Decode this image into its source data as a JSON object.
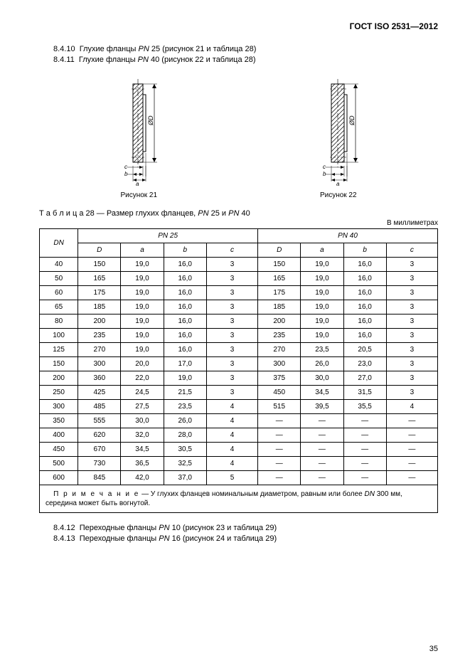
{
  "doc_id": "ГОСТ ISO 2531—2012",
  "sections_top": [
    {
      "num": "8.4.10",
      "text": "Глухие фланцы ",
      "italic": "PN",
      "rest": " 25 (рисунок 21 и таблица 28)"
    },
    {
      "num": "8.4.11",
      "text": "Глухие фланцы ",
      "italic": "PN",
      "rest": " 40 (рисунок 22 и таблица 28)"
    }
  ],
  "figure_captions": {
    "left": "Рисунок 21",
    "right": "Рисунок 22"
  },
  "table_title_prefix": "Т а б л и ц а  28",
  "table_title_rest": " — Размер глухих фланцев, ",
  "table_title_italic1": "PN",
  "table_title_mid": " 25 и ",
  "table_title_italic2": "PN",
  "table_title_end": " 40",
  "units_label": "В миллиметрах",
  "group_headers": {
    "pn25": "PN 25",
    "pn40": "PN 40"
  },
  "col_headers": {
    "dn": "DN",
    "D": "D",
    "a": "a",
    "b": "b",
    "c": "c"
  },
  "rows": [
    {
      "dn": "40",
      "pn25": {
        "D": "150",
        "a": "19,0",
        "b": "16,0",
        "c": "3"
      },
      "pn40": {
        "D": "150",
        "a": "19,0",
        "b": "16,0",
        "c": "3"
      }
    },
    {
      "dn": "50",
      "pn25": {
        "D": "165",
        "a": "19,0",
        "b": "16,0",
        "c": "3"
      },
      "pn40": {
        "D": "165",
        "a": "19,0",
        "b": "16,0",
        "c": "3"
      }
    },
    {
      "dn": "60",
      "pn25": {
        "D": "175",
        "a": "19,0",
        "b": "16,0",
        "c": "3"
      },
      "pn40": {
        "D": "175",
        "a": "19,0",
        "b": "16,0",
        "c": "3"
      }
    },
    {
      "dn": "65",
      "pn25": {
        "D": "185",
        "a": "19,0",
        "b": "16,0",
        "c": "3"
      },
      "pn40": {
        "D": "185",
        "a": "19,0",
        "b": "16,0",
        "c": "3"
      }
    },
    {
      "dn": "80",
      "pn25": {
        "D": "200",
        "a": "19,0",
        "b": "16,0",
        "c": "3"
      },
      "pn40": {
        "D": "200",
        "a": "19,0",
        "b": "16,0",
        "c": "3"
      }
    },
    {
      "dn": "100",
      "pn25": {
        "D": "235",
        "a": "19,0",
        "b": "16,0",
        "c": "3"
      },
      "pn40": {
        "D": "235",
        "a": "19,0",
        "b": "16,0",
        "c": "3"
      }
    },
    {
      "dn": "125",
      "pn25": {
        "D": "270",
        "a": "19,0",
        "b": "16,0",
        "c": "3"
      },
      "pn40": {
        "D": "270",
        "a": "23,5",
        "b": "20,5",
        "c": "3"
      }
    },
    {
      "dn": "150",
      "pn25": {
        "D": "300",
        "a": "20,0",
        "b": "17,0",
        "c": "3"
      },
      "pn40": {
        "D": "300",
        "a": "26,0",
        "b": "23,0",
        "c": "3"
      }
    },
    {
      "dn": "200",
      "pn25": {
        "D": "360",
        "a": "22,0",
        "b": "19,0",
        "c": "3"
      },
      "pn40": {
        "D": "375",
        "a": "30,0",
        "b": "27,0",
        "c": "3"
      }
    },
    {
      "dn": "250",
      "pn25": {
        "D": "425",
        "a": "24,5",
        "b": "21,5",
        "c": "3"
      },
      "pn40": {
        "D": "450",
        "a": "34,5",
        "b": "31,5",
        "c": "3"
      }
    },
    {
      "dn": "300",
      "pn25": {
        "D": "485",
        "a": "27,5",
        "b": "23,5",
        "c": "4"
      },
      "pn40": {
        "D": "515",
        "a": "39,5",
        "b": "35,5",
        "c": "4"
      }
    },
    {
      "dn": "350",
      "pn25": {
        "D": "555",
        "a": "30,0",
        "b": "26,0",
        "c": "4"
      },
      "pn40": {
        "D": "—",
        "a": "—",
        "b": "—",
        "c": "—"
      }
    },
    {
      "dn": "400",
      "pn25": {
        "D": "620",
        "a": "32,0",
        "b": "28,0",
        "c": "4"
      },
      "pn40": {
        "D": "—",
        "a": "—",
        "b": "—",
        "c": "—"
      }
    },
    {
      "dn": "450",
      "pn25": {
        "D": "670",
        "a": "34,5",
        "b": "30,5",
        "c": "4"
      },
      "pn40": {
        "D": "—",
        "a": "—",
        "b": "—",
        "c": "—"
      }
    },
    {
      "dn": "500",
      "pn25": {
        "D": "730",
        "a": "36,5",
        "b": "32,5",
        "c": "4"
      },
      "pn40": {
        "D": "—",
        "a": "—",
        "b": "—",
        "c": "—"
      }
    },
    {
      "dn": "600",
      "pn25": {
        "D": "845",
        "a": "42,0",
        "b": "37,0",
        "c": "5"
      },
      "pn40": {
        "D": "—",
        "a": "—",
        "b": "—",
        "c": "—"
      }
    }
  ],
  "note_label": "П р и м е ч а н и е",
  "note_text": " — У глухих фланцев номинальным диаметром, равным или более ",
  "note_italic": "DN",
  "note_rest": " 300 мм, середина может быть вогнутой.",
  "sections_bottom": [
    {
      "num": "8.4.12",
      "text": "Переходные фланцы ",
      "italic": "PN",
      "rest": " 10 (рисунок 23 и таблица 29)"
    },
    {
      "num": "8.4.13",
      "text": "Переходные фланцы ",
      "italic": "PN",
      "rest": " 16 (рисунок 24 и таблица 29)"
    }
  ],
  "page_number": "35",
  "figure_svg": {
    "width": 80,
    "height": 150,
    "stroke": "#000",
    "hatch": "#000",
    "bg": "#fff"
  }
}
